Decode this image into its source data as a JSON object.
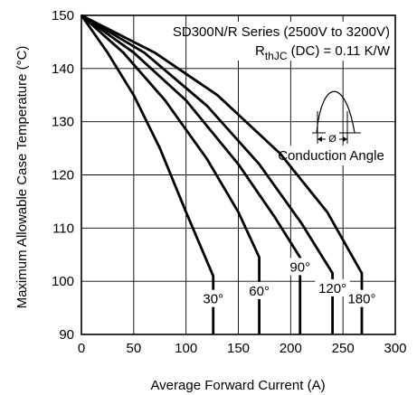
{
  "chart_data": {
    "type": "line",
    "title": "SD300N/R Series (2500V to 3200V)",
    "subtitle": {
      "main": "R",
      "sub": "thJC",
      "rest": " (DC) = 0.11 K/W"
    },
    "xlabel": "Average Forward Current (A)",
    "ylabel": "Maximum Allowable Case Temperature (°C)",
    "xlim": [
      0,
      300
    ],
    "ylim": [
      90,
      150
    ],
    "xticks": [
      0,
      50,
      100,
      150,
      200,
      250,
      300
    ],
    "yticks": [
      90,
      100,
      110,
      120,
      130,
      140,
      150
    ],
    "grid": true,
    "inset_label": "Conduction Angle",
    "inset_symbol": "Ø",
    "series": [
      {
        "name": "30°",
        "points": [
          [
            0,
            150
          ],
          [
            25,
            143
          ],
          [
            50,
            135
          ],
          [
            75,
            125
          ],
          [
            100,
            113
          ],
          [
            126,
            101
          ],
          [
            126,
            90
          ]
        ],
        "label_at": [
          126,
          96
        ]
      },
      {
        "name": "60°",
        "points": [
          [
            0,
            150
          ],
          [
            40,
            143
          ],
          [
            80,
            134
          ],
          [
            120,
            123
          ],
          [
            150,
            113
          ],
          [
            170,
            104.5
          ],
          [
            170,
            90
          ]
        ],
        "label_at": [
          170,
          97.5
        ]
      },
      {
        "name": "90°",
        "points": [
          [
            0,
            150
          ],
          [
            50,
            143
          ],
          [
            100,
            134
          ],
          [
            150,
            122
          ],
          [
            185,
            112
          ],
          [
            209,
            104.5
          ],
          [
            209,
            90
          ]
        ],
        "label_at": [
          209,
          102
        ]
      },
      {
        "name": "120°",
        "points": [
          [
            0,
            150
          ],
          [
            60,
            143
          ],
          [
            120,
            133
          ],
          [
            170,
            122
          ],
          [
            210,
            111
          ],
          [
            240,
            101.5
          ],
          [
            240,
            90
          ]
        ],
        "label_at": [
          240,
          98
        ]
      },
      {
        "name": "180°",
        "points": [
          [
            0,
            150
          ],
          [
            70,
            143
          ],
          [
            130,
            135
          ],
          [
            190,
            124
          ],
          [
            235,
            113
          ],
          [
            268,
            101.5
          ],
          [
            268,
            90
          ]
        ],
        "label_at": [
          268,
          96
        ]
      }
    ]
  }
}
